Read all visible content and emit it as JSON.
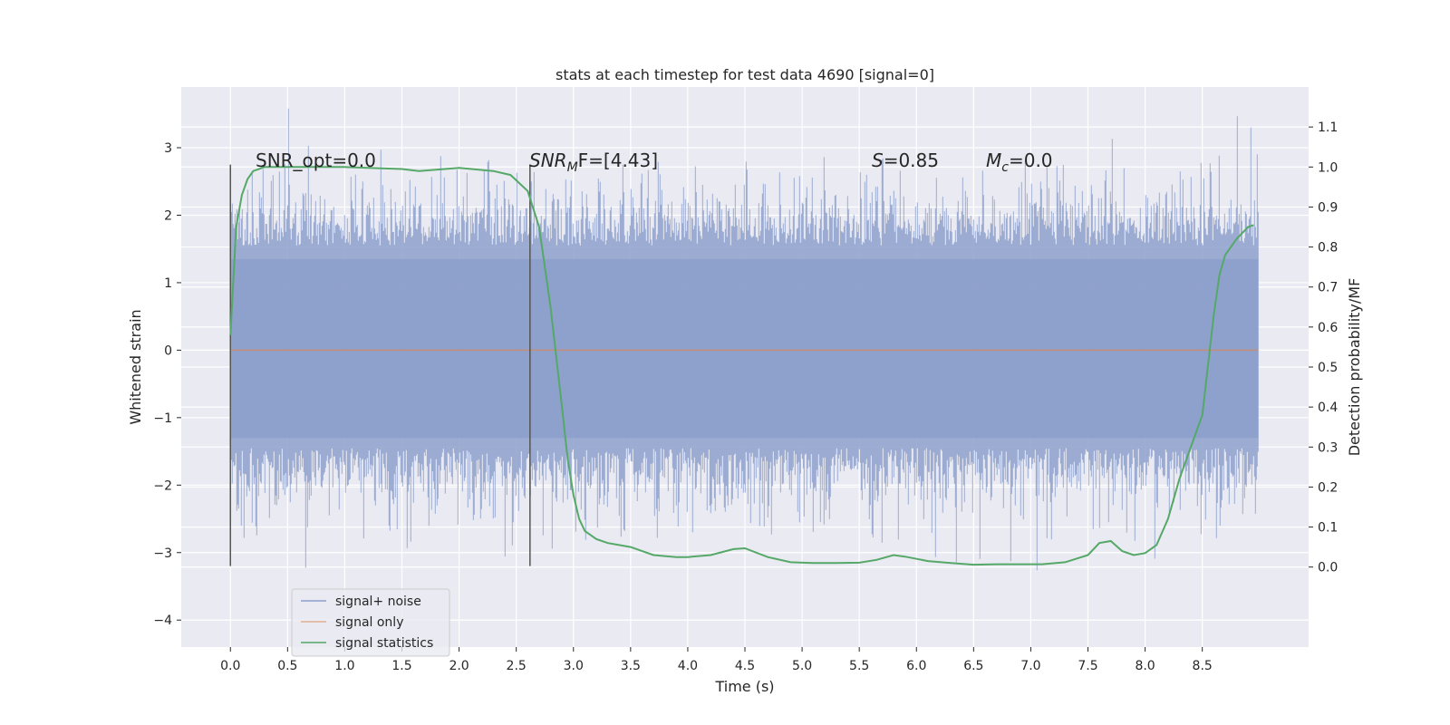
{
  "chart_data": {
    "type": "line",
    "title": "stats at each timestep for test data 4690 [signal=0]",
    "xlabel": "Time (s)",
    "ylabel": "Whitened strain",
    "y2label": "Detection probability/MF",
    "xlim": [
      -0.43,
      9.43
    ],
    "ylim": [
      -4.4,
      3.9
    ],
    "y2lim": [
      -0.2,
      1.2
    ],
    "xticks": [
      "0.0",
      "0.5",
      "1.0",
      "1.5",
      "2.0",
      "2.5",
      "3.0",
      "3.5",
      "4.0",
      "4.5",
      "5.0",
      "5.5",
      "6.0",
      "6.5",
      "7.0",
      "7.5",
      "8.0",
      "8.5"
    ],
    "yticks": [
      "−4",
      "−3",
      "−2",
      "−1",
      "0",
      "1",
      "2",
      "3"
    ],
    "y2ticks": [
      "0.0",
      "0.1",
      "0.2",
      "0.3",
      "0.4",
      "0.5",
      "0.6",
      "0.7",
      "0.8",
      "0.9",
      "1.0",
      "1.1"
    ],
    "grid": true,
    "legend": {
      "placement": "lower-left",
      "entries": [
        {
          "label": "signal+ noise",
          "color": "#8da0cb"
        },
        {
          "label": "signal only",
          "color": "#dd8452"
        },
        {
          "label": "signal statistics",
          "color": "#55a868"
        }
      ]
    },
    "annotations": {
      "snr_opt": "SNR_opt=0.0",
      "snr_mf_main": "SNR",
      "snr_mf_sub": "M",
      "snr_mf_rest": "F=[4.43]",
      "s_main": "S",
      "s_rest": "=0.85",
      "mc_main": "M",
      "mc_sub": "c",
      "mc_rest": "=0.0"
    },
    "vlines": [
      {
        "x": 0.0,
        "ymin": -3.2,
        "ymax": 2.75
      },
      {
        "x": 2.62,
        "ymin": -3.2,
        "ymax": 2.75
      }
    ],
    "noise": {
      "t_start": 0.0,
      "t_end": 8.99,
      "min": -4.03,
      "max": 3.58,
      "color": "#8da0cb"
    },
    "signal_only": {
      "t_start": 0.0,
      "t_end": 8.99,
      "value": 0.0,
      "color": "#dd8452"
    },
    "signal_statistics": {
      "color": "#55a868",
      "x": [
        0.0,
        0.05,
        0.1,
        0.15,
        0.2,
        0.3,
        0.5,
        1.0,
        1.5,
        1.65,
        2.0,
        2.3,
        2.45,
        2.6,
        2.7,
        2.8,
        2.9,
        2.95,
        3.0,
        3.05,
        3.1,
        3.2,
        3.3,
        3.5,
        3.7,
        3.9,
        4.0,
        4.2,
        4.4,
        4.5,
        4.7,
        4.9,
        5.1,
        5.3,
        5.5,
        5.65,
        5.8,
        5.9,
        6.1,
        6.3,
        6.5,
        6.7,
        6.9,
        7.1,
        7.3,
        7.5,
        7.6,
        7.7,
        7.8,
        7.9,
        8.0,
        8.1,
        8.2,
        8.3,
        8.4,
        8.5,
        8.6,
        8.65,
        8.7,
        8.8,
        8.9,
        8.95
      ],
      "y": [
        0.58,
        0.85,
        0.93,
        0.97,
        0.99,
        1.0,
        1.0,
        1.0,
        0.995,
        0.99,
        0.998,
        0.99,
        0.98,
        0.94,
        0.85,
        0.65,
        0.4,
        0.27,
        0.18,
        0.12,
        0.09,
        0.07,
        0.06,
        0.05,
        0.03,
        0.025,
        0.025,
        0.03,
        0.045,
        0.047,
        0.025,
        0.012,
        0.01,
        0.01,
        0.011,
        0.018,
        0.03,
        0.026,
        0.015,
        0.01,
        0.006,
        0.007,
        0.007,
        0.007,
        0.012,
        0.03,
        0.06,
        0.065,
        0.04,
        0.03,
        0.035,
        0.055,
        0.12,
        0.22,
        0.3,
        0.38,
        0.63,
        0.73,
        0.78,
        0.82,
        0.85,
        0.855
      ]
    }
  }
}
